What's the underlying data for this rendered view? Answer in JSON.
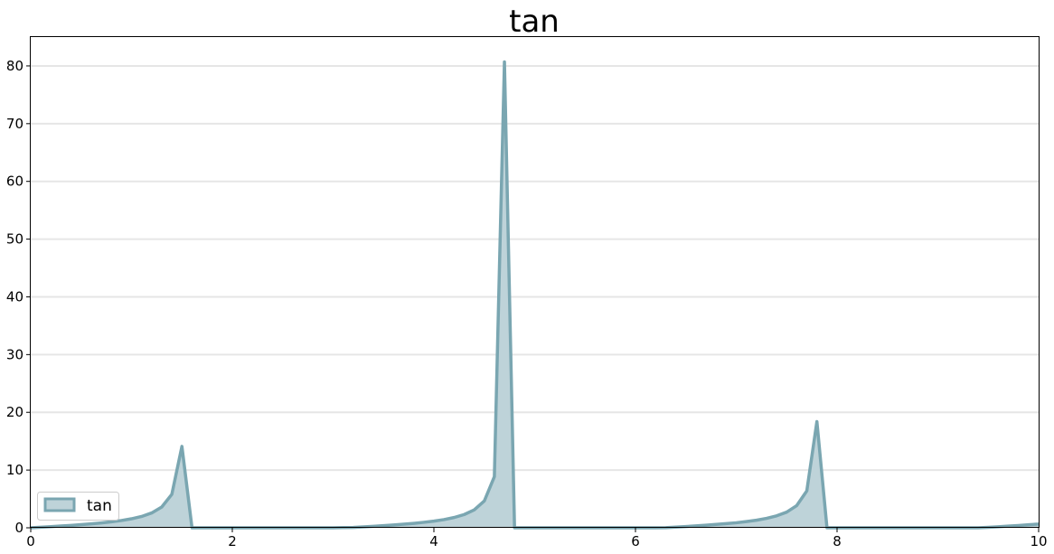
{
  "chart_data": {
    "type": "area",
    "title": "tan",
    "xlabel": "",
    "ylabel": "",
    "xlim": [
      0,
      10
    ],
    "ylim": [
      0,
      85
    ],
    "xticks": [
      "0",
      "2",
      "4",
      "6",
      "8",
      "10"
    ],
    "yticks": [
      "0",
      "10",
      "20",
      "30",
      "40",
      "50",
      "60",
      "70",
      "80"
    ],
    "grid": "horizontal",
    "legend_position": "lower-left",
    "series": [
      {
        "name": "tan",
        "color": "#7aa6b1",
        "fill": "#bed3d9",
        "x": [
          0.0,
          0.1,
          0.2,
          0.3,
          0.4,
          0.5,
          0.6,
          0.7,
          0.8,
          0.9,
          1.0,
          1.1,
          1.2,
          1.3,
          1.4,
          1.5,
          1.6,
          1.7,
          1.8,
          1.9,
          2.0,
          2.1,
          2.2,
          2.3,
          2.4,
          2.5,
          2.6,
          2.7,
          2.8,
          2.9,
          3.0,
          3.1,
          3.2,
          3.3,
          3.4,
          3.5,
          3.6,
          3.7,
          3.8,
          3.9,
          4.0,
          4.1,
          4.2,
          4.3,
          4.4,
          4.5,
          4.6,
          4.7,
          4.8,
          4.9,
          5.0,
          5.1,
          5.2,
          5.3,
          5.4,
          5.5,
          5.6,
          5.7,
          5.8,
          5.9,
          6.0,
          6.1,
          6.2,
          6.3,
          6.4,
          6.5,
          6.6,
          6.7,
          6.8,
          6.9,
          7.0,
          7.1,
          7.2,
          7.3,
          7.4,
          7.5,
          7.6,
          7.7,
          7.8,
          7.9,
          8.0,
          8.1,
          8.2,
          8.3,
          8.4,
          8.5,
          8.6,
          8.7,
          8.8,
          8.9,
          9.0,
          9.1,
          9.2,
          9.3,
          9.4,
          9.5,
          9.6,
          9.7,
          9.8,
          9.9,
          10.0
        ],
        "values": [
          0.0,
          0.1,
          0.2,
          0.31,
          0.42,
          0.55,
          0.68,
          0.84,
          1.03,
          1.26,
          1.56,
          1.96,
          2.57,
          3.6,
          5.8,
          14.1,
          0,
          0,
          0,
          0,
          0,
          0,
          0,
          0,
          0,
          0,
          0,
          0,
          0,
          0,
          0,
          0.04,
          0.06,
          0.16,
          0.26,
          0.37,
          0.49,
          0.62,
          0.77,
          0.95,
          1.16,
          1.42,
          1.78,
          2.29,
          3.1,
          4.64,
          8.86,
          80.7,
          0,
          0,
          0,
          0,
          0,
          0,
          0,
          0,
          0,
          0,
          0,
          0,
          0,
          0,
          0,
          0.02,
          0.12,
          0.22,
          0.33,
          0.45,
          0.58,
          0.72,
          0.87,
          1.07,
          1.31,
          1.63,
          2.07,
          2.71,
          3.85,
          6.39,
          18.4,
          0,
          0,
          0,
          0,
          0,
          0,
          0,
          0,
          0,
          0,
          0,
          0,
          0,
          0,
          0,
          0,
          0.08,
          0.18,
          0.29,
          0.4,
          0.52,
          0.65
        ]
      }
    ]
  }
}
